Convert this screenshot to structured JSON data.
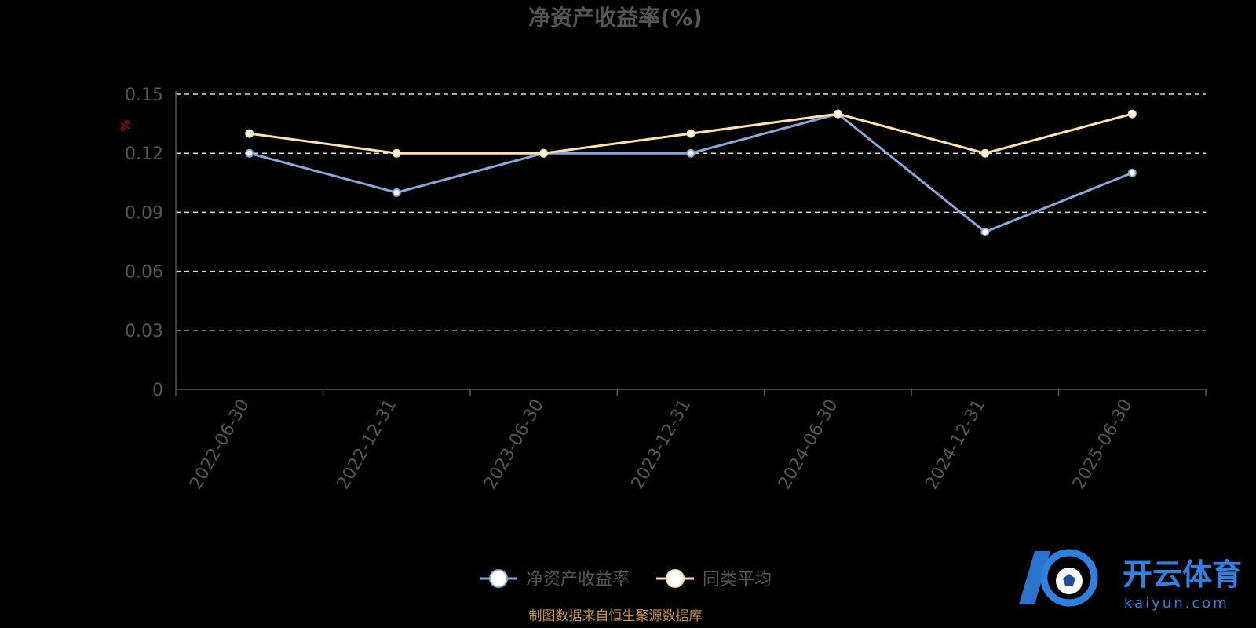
{
  "chart_data": {
    "type": "line",
    "title": "净资产收益率(%)",
    "unit_label": "%",
    "categories": [
      "2022-06-30",
      "2022-12-31",
      "2023-06-30",
      "2023-12-31",
      "2024-06-30",
      "2024-12-31",
      "2025-06-30"
    ],
    "ylim": [
      0,
      0.15
    ],
    "yticks": [
      "0",
      "0.03",
      "0.06",
      "0.09",
      "0.12",
      "0.15"
    ],
    "grid": true,
    "legend_position": "bottom",
    "series": [
      {
        "name": "净资产收益率",
        "color": "#8aa6d8",
        "values": [
          0.12,
          0.1,
          0.12,
          0.12,
          0.14,
          0.08,
          0.11
        ]
      },
      {
        "name": "同类平均",
        "color": "#fde3a7",
        "values": [
          0.13,
          0.12,
          0.12,
          0.13,
          0.14,
          0.12,
          0.14
        ]
      }
    ]
  },
  "source_note": "制图数据来自恒生聚源数据库",
  "watermark": {
    "brand": "开云体育",
    "domain": "kaiyun.com",
    "icon": "ball-logo-icon",
    "color": "#2f80e0"
  }
}
